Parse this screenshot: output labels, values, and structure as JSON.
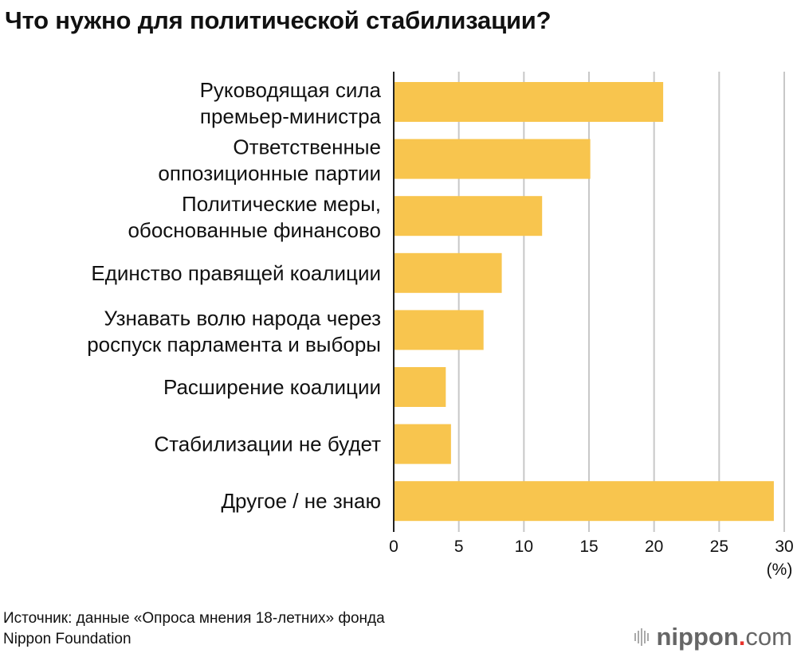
{
  "chart_data": {
    "type": "bar",
    "orientation": "horizontal",
    "title": "Что нужно для политической стабилизации?",
    "categories": [
      [
        "Руководящая сила",
        "премьер-министра"
      ],
      [
        "Ответственные",
        "оппозиционные партии"
      ],
      [
        "Политические меры,",
        "обоснованные финансово"
      ],
      [
        "Единство правящей коалиции"
      ],
      [
        "Узнавать волю народа через",
        "роспуск парламента и выборы"
      ],
      [
        "Расширение коалиции"
      ],
      [
        "Стабилизации не будет"
      ],
      [
        "Другое / не знаю"
      ]
    ],
    "values": [
      20.7,
      15.1,
      11.4,
      8.3,
      6.9,
      4.0,
      4.4,
      29.2
    ],
    "xlabel": "(%)",
    "xlim": [
      0,
      30
    ],
    "xticks": [
      0,
      5,
      10,
      15,
      20,
      25,
      30
    ],
    "grid": true,
    "bar_color": "#F8C54E"
  },
  "source": [
    "Источник: данные «Опроса мнения 18-летних» фонда",
    "Nippon Foundation"
  ],
  "logo": {
    "name": "nippon",
    "dot": ".",
    "tld": "com"
  }
}
